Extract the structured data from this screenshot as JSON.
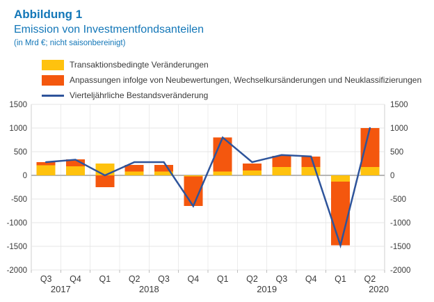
{
  "header": {
    "title": "Abbildung 1",
    "subtitle": "Emission von Investmentfondsanteilen",
    "note": "(in Mrd €; nicht saisonbereinigt)"
  },
  "legend": {
    "items": [
      {
        "name": "transactions",
        "swatch": "box",
        "color": "#FFC20E",
        "label": "Transaktionsbedingte Veränderungen"
      },
      {
        "name": "adjustments",
        "swatch": "box",
        "color": "#F4570E",
        "label": "Anpassungen infolge von Neubewertungen, Wechselkursänderungen und Neuklassifizierungen"
      },
      {
        "name": "stock-change",
        "swatch": "line",
        "color": "#2E549B",
        "label": "Vierteljährliche Bestandsveränderung"
      }
    ]
  },
  "chart_data": {
    "type": "bar",
    "stacked": true,
    "title": "Emission von Investmentfondsanteilen",
    "unit": "Mrd €",
    "categories": [
      "Q3",
      "Q4",
      "Q1",
      "Q2",
      "Q3",
      "Q4",
      "Q1",
      "Q2",
      "Q3",
      "Q4",
      "Q1",
      "Q2"
    ],
    "year_groups": [
      {
        "label": "2017",
        "center_index": 0.5
      },
      {
        "label": "2018",
        "center_index": 3.5
      },
      {
        "label": "2019",
        "center_index": 7.5
      },
      {
        "label": "2020",
        "center_index": 11.3
      }
    ],
    "series": [
      {
        "name": "Transaktionsbedingte Veränderungen",
        "type": "bar",
        "color": "#FFC20E",
        "values": [
          210,
          190,
          250,
          80,
          80,
          -20,
          80,
          100,
          175,
          175,
          -130,
          175
        ]
      },
      {
        "name": "Anpassungen infolge von Neubewertungen, Wechselkursänderungen und Neuklassifizierungen",
        "type": "bar",
        "color": "#F4570E",
        "values": [
          70,
          150,
          -250,
          140,
          140,
          -630,
          720,
          150,
          235,
          225,
          -1350,
          825
        ]
      },
      {
        "name": "Vierteljährliche Bestandsveränderung",
        "type": "line",
        "color": "#2E549B",
        "values": [
          280,
          330,
          0,
          280,
          280,
          -650,
          800,
          280,
          430,
          400,
          -1480,
          1000
        ]
      }
    ],
    "ylim": [
      -2000,
      1500
    ],
    "yticks": [
      1500,
      1000,
      500,
      0,
      -500,
      -1000,
      -1500,
      -2000
    ],
    "grid": true,
    "axis_labels_both_sides": true,
    "legend_position": "top-left",
    "colors": {
      "grid": "#e4e4e4",
      "grid_edge": "#cfcfcf",
      "zero_line": "#b5b5b5",
      "tick_text": "#3a3a3a"
    }
  }
}
